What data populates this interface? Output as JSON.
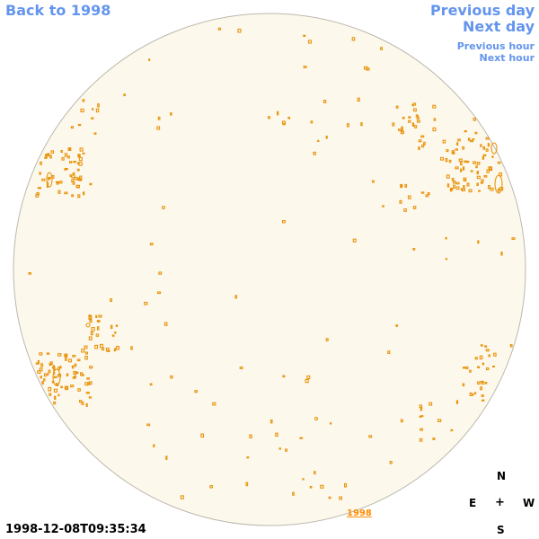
{
  "nav": {
    "back": "Back to 1998",
    "previous_day": "Previous day",
    "next_day": "Next day",
    "previous_hour": "Previous hour",
    "next_hour": "Next hour"
  },
  "timestamp": "1998-12-08T09:35:34",
  "compass": {
    "n": "N",
    "e": "E",
    "plus": "+",
    "w": "W",
    "s": "S"
  },
  "disk_link": "1998",
  "colors": {
    "disk_fill": "#fdf8ec",
    "contour": "#e8930c",
    "nav": "#6495ed"
  }
}
